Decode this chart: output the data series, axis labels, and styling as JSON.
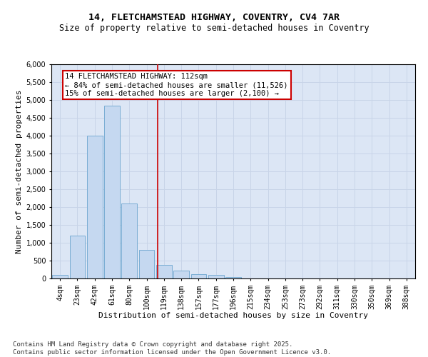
{
  "title_line1": "14, FLETCHAMSTEAD HIGHWAY, COVENTRY, CV4 7AR",
  "title_line2": "Size of property relative to semi-detached houses in Coventry",
  "xlabel": "Distribution of semi-detached houses by size in Coventry",
  "ylabel": "Number of semi-detached properties",
  "categories": [
    "4sqm",
    "23sqm",
    "42sqm",
    "61sqm",
    "80sqm",
    "100sqm",
    "119sqm",
    "138sqm",
    "157sqm",
    "177sqm",
    "196sqm",
    "215sqm",
    "234sqm",
    "253sqm",
    "273sqm",
    "292sqm",
    "311sqm",
    "330sqm",
    "350sqm",
    "369sqm",
    "388sqm"
  ],
  "values": [
    100,
    1200,
    4000,
    4850,
    2100,
    800,
    380,
    230,
    120,
    100,
    40,
    10,
    5,
    3,
    2,
    1,
    0,
    0,
    0,
    0,
    0
  ],
  "bar_color": "#c5d8f0",
  "bar_edge_color": "#7aadd4",
  "vline_color": "#cc0000",
  "annotation_box_color": "#cc0000",
  "ylim": [
    0,
    6000
  ],
  "yticks": [
    0,
    500,
    1000,
    1500,
    2000,
    2500,
    3000,
    3500,
    4000,
    4500,
    5000,
    5500,
    6000
  ],
  "grid_color": "#c8d4e8",
  "bg_color": "#dce6f5",
  "property_label": "14 FLETCHAMSTEAD HIGHWAY: 112sqm",
  "pct_smaller": 84,
  "pct_larger": 15,
  "n_smaller": 11526,
  "n_larger": 2100,
  "footnote": "Contains HM Land Registry data © Crown copyright and database right 2025.\nContains public sector information licensed under the Open Government Licence v3.0.",
  "title_fontsize": 9.5,
  "subtitle_fontsize": 8.5,
  "axis_label_fontsize": 8,
  "tick_fontsize": 7,
  "annotation_fontsize": 7.5,
  "footnote_fontsize": 6.5
}
